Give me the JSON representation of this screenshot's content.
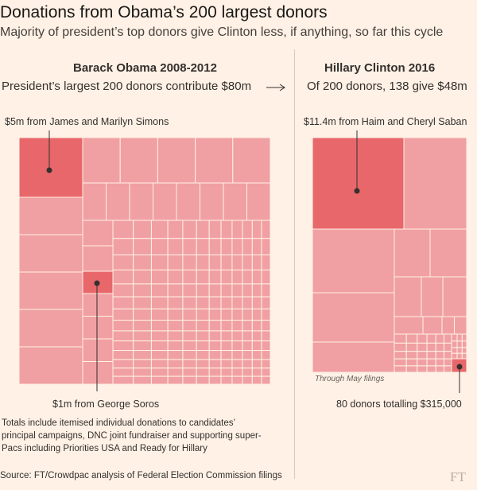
{
  "header": {
    "title": "Donations from Obama’s 200 largest donors",
    "subtitle": "Majority of president’s top donors give Clinton less, if anything, so far this cycle"
  },
  "colors": {
    "background": "#fff1e5",
    "cell": "#f0a0a2",
    "highlight": "#e8676b",
    "cell_border": "#fff1e5",
    "annotation_line": "#33302e"
  },
  "chart_data": [
    {
      "type": "treemap",
      "title": "Barack Obama 2008-2012",
      "subtitle": "President’s largest 200 donors contribute $80m",
      "total_donors": 200,
      "total_value_m": 80,
      "highlights": [
        {
          "label": "$5m from James and Marilyn Simons",
          "value_m": 5
        },
        {
          "label": "$1m from George Soros",
          "value_m": 1
        }
      ]
    },
    {
      "type": "treemap",
      "title": "Hillary Clinton 2016",
      "subtitle": "Of 200 donors, 138 give $48m",
      "total_donors": 138,
      "total_value_m": 48,
      "note": "Through May filings",
      "highlights": [
        {
          "label": "$11.4m from Haim and Cheryl Saban",
          "value_m": 11.4
        },
        {
          "label": "80 donors totalling $315,000",
          "value_m": 0.315,
          "donors": 80
        }
      ]
    }
  ],
  "footer": {
    "note": "Totals include itemised individual donations to candidates’ principal campaigns, DNC joint fundraiser and supporting super-Pacs including Priorities USA and Ready for Hillary",
    "source": "Source: FT/Crowdpac analysis of Federal Election Commission filings",
    "logo": "FT"
  }
}
